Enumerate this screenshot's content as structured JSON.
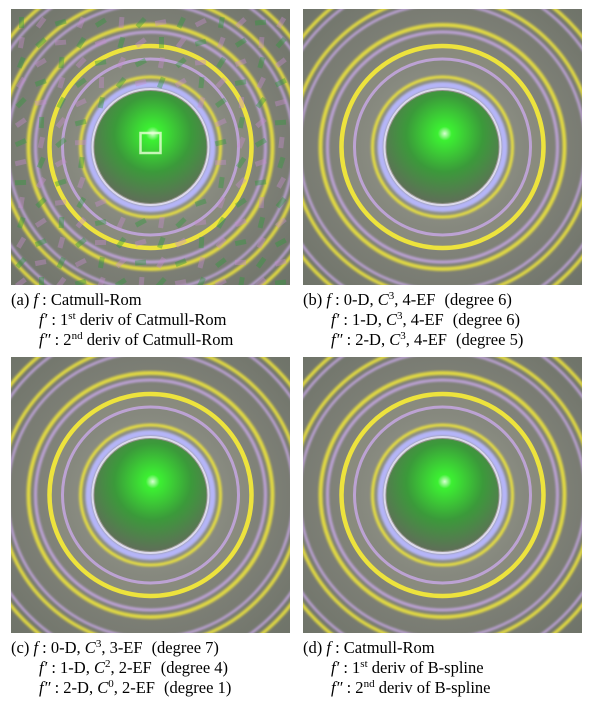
{
  "figure": {
    "panels": [
      {
        "id": "a",
        "tag": "(a)",
        "lines": [
          {
            "sym": "f",
            "prime": "",
            "rest": " : Catmull-Rom"
          },
          {
            "sym": "f",
            "prime": "′",
            "rest": " : 1",
            "sup": "st",
            "tail": " deriv of Catmull-Rom"
          },
          {
            "sym": "f",
            "prime": "″",
            "rest": " : 2",
            "sup": "nd",
            "tail": " deriv of Catmull-Rom"
          }
        ],
        "style": "artifact"
      },
      {
        "id": "b",
        "tag": "(b)",
        "lines": [
          {
            "sym": "f",
            "prime": "",
            "rest": " : 0-D, ",
            "csym": "C",
            "sup": "3",
            "tail": ", 4-EF",
            "degree": "(degree 6)"
          },
          {
            "sym": "f",
            "prime": "′",
            "rest": " : 1-D, ",
            "csym": "C",
            "sup": "3",
            "tail": ", 4-EF",
            "degree": "(degree 6)"
          },
          {
            "sym": "f",
            "prime": "″",
            "rest": " : 2-D, ",
            "csym": "C",
            "sup": "3",
            "tail": ", 4-EF",
            "degree": "(degree 5)"
          }
        ],
        "style": "smooth"
      },
      {
        "id": "c",
        "tag": "(c)",
        "lines": [
          {
            "sym": "f",
            "prime": "",
            "rest": " : 0-D, ",
            "csym": "C",
            "sup": "3",
            "tail": ", 3-EF",
            "degree": "(degree 7)"
          },
          {
            "sym": "f",
            "prime": "′",
            "rest": " : 1-D, ",
            "csym": "C",
            "sup": "2",
            "tail": ", 2-EF",
            "degree": "(degree 4)"
          },
          {
            "sym": "f",
            "prime": "″",
            "rest": " : 2-D, ",
            "csym": "C",
            "sup": "0",
            "tail": ", 2-EF",
            "degree": "(degree 1)"
          }
        ],
        "style": "smooth"
      },
      {
        "id": "d",
        "tag": "(d)",
        "lines": [
          {
            "sym": "f",
            "prime": "",
            "rest": " : Catmull-Rom"
          },
          {
            "sym": "f",
            "prime": "′",
            "rest": " : 1",
            "sup": "st",
            "tail": " deriv of B-spline"
          },
          {
            "sym": "f",
            "prime": "″",
            "rest": " : 2",
            "sup": "nd",
            "tail": " deriv of B-spline"
          }
        ],
        "style": "smooth"
      }
    ],
    "colors": {
      "background": "#7d7f76",
      "ring_yellow": "#f2e83a",
      "ring_violet": "#c9a9e8",
      "ring_lavender": "#b8b8ff",
      "sphere_center": "#3cf032",
      "sphere_edge": "#5f6f58",
      "artifact_green": "#2f9a3a",
      "artifact_magenta": "#c48ccc"
    }
  }
}
